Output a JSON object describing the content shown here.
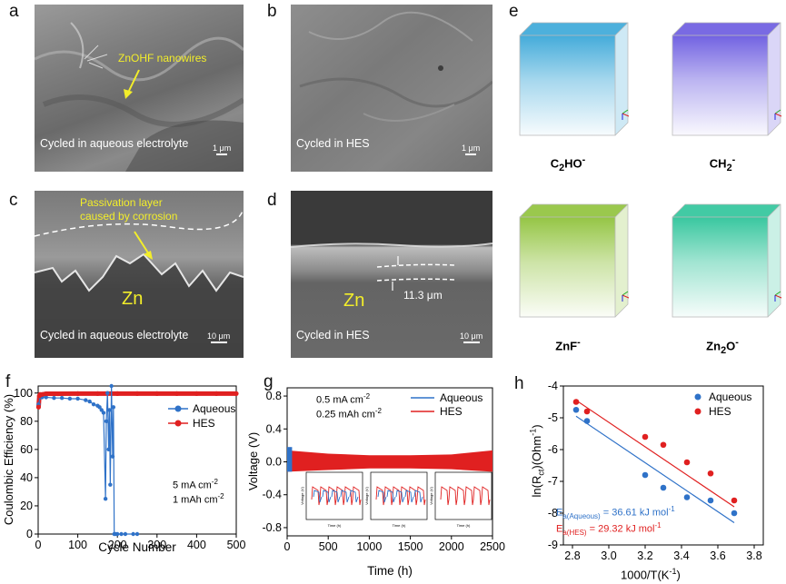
{
  "panel_labels": {
    "a": "a",
    "b": "b",
    "c": "c",
    "d": "d",
    "e": "e",
    "f": "f",
    "g": "g",
    "h": "h"
  },
  "sem": {
    "a": {
      "annotation": "ZnOHF nanowires",
      "caption": "Cycled in aqueous electrolyte",
      "scale": "1 μm"
    },
    "b": {
      "caption": "Cycled in HES",
      "scale": "1 μm"
    },
    "c": {
      "annotation_line1": "Passivation layer",
      "annotation_line2": "caused by corrosion",
      "zn": "Zn",
      "caption": "Cycled in aqueous electrolyte",
      "scale": "10 μm"
    },
    "d": {
      "zn": "Zn",
      "thickness": "11.3 μm",
      "caption": "Cycled in HES",
      "scale": "10 μm"
    }
  },
  "cubes": [
    {
      "formula_main": "C",
      "formula_sub": "2",
      "formula_rest": "HO",
      "formula_sup": "-",
      "color": "#3aa7d8"
    },
    {
      "formula_main": "CH",
      "formula_sub": "2",
      "formula_rest": "",
      "formula_sup": "-",
      "color": "#6a5ae0"
    },
    {
      "formula_main": "ZnF",
      "formula_sub": "",
      "formula_rest": "",
      "formula_sup": "-",
      "color": "#8fc23a"
    },
    {
      "formula_main": "Zn",
      "formula_sub": "2",
      "formula_rest": "O",
      "formula_sup": "-",
      "color": "#2ec49a"
    }
  ],
  "chart_data": [
    {
      "panel": "f",
      "type": "line",
      "xlabel": "Cycle Number",
      "ylabel": "Coulombic Efficiency (%)",
      "xlim": [
        0,
        500
      ],
      "ylim": [
        0,
        105
      ],
      "xticks": [
        0,
        100,
        200,
        300,
        400,
        500
      ],
      "yticks": [
        0,
        20,
        40,
        60,
        80,
        100
      ],
      "annotation_line1": "5 mA cm",
      "annotation_line1_sup": "-2",
      "annotation_line2": "1 mAh cm",
      "annotation_line2_sup": "-2",
      "legend_position": "top-right",
      "series": [
        {
          "name": "Aqueous",
          "color": "#2f72c8",
          "x": [
            1,
            5,
            10,
            20,
            40,
            60,
            80,
            100,
            120,
            130,
            140,
            150,
            155,
            160,
            165,
            170,
            172,
            175,
            178,
            180,
            182,
            185,
            188,
            190,
            192,
            195,
            200,
            210,
            220,
            240,
            250
          ],
          "y": [
            92,
            97,
            97,
            97,
            96.5,
            96.5,
            96,
            96,
            95,
            94,
            92,
            91,
            90,
            88,
            86,
            25,
            80,
            100,
            60,
            88,
            35,
            105,
            55,
            90,
            0,
            0,
            0,
            0,
            0,
            0,
            0
          ]
        },
        {
          "name": "HES",
          "color": "#e02020",
          "x": [
            1,
            3,
            5,
            10,
            20,
            50,
            100,
            150,
            200,
            250,
            300,
            350,
            400,
            450,
            500
          ],
          "y": [
            90,
            98,
            99,
            99,
            99.5,
            99.5,
            99.6,
            99.6,
            99.6,
            99.6,
            99.6,
            99.6,
            99.6,
            99.6,
            99.6
          ]
        }
      ]
    },
    {
      "panel": "g",
      "type": "line",
      "xlabel": "Time (h)",
      "ylabel": "Voltage (V)",
      "xlim": [
        0,
        2500
      ],
      "ylim": [
        -0.9,
        0.9
      ],
      "xticks": [
        0,
        500,
        1000,
        1500,
        2000,
        2500
      ],
      "yticks": [
        -0.8,
        -0.4,
        0.0,
        0.4,
        0.8
      ],
      "annotation_line1": "0.5 mA cm",
      "annotation_line1_sup": "-2",
      "annotation_line2": "0.25 mAh cm",
      "annotation_line2_sup": "-2",
      "legend_position": "top-right",
      "series": [
        {
          "name": "Aqueous",
          "color": "#2f72c8",
          "x": [
            0,
            60
          ],
          "y_max": [
            0.18,
            0.18
          ],
          "y_min": [
            -0.12,
            -0.12
          ]
        },
        {
          "name": "HES",
          "color": "#e02020",
          "x": [
            0,
            500,
            1000,
            1500,
            2000,
            2500
          ],
          "y_max": [
            0.14,
            0.1,
            0.08,
            0.08,
            0.09,
            0.14
          ],
          "y_min": [
            -0.12,
            -0.1,
            -0.08,
            -0.08,
            -0.09,
            -0.12
          ]
        }
      ],
      "inset_tick_labels": {
        "y": "Voltage (V)",
        "x": "Time (h)"
      }
    },
    {
      "panel": "h",
      "type": "scatter",
      "xlabel": "1000/T(K",
      "xlabel_sup": "-1",
      "xlabel_end": ")",
      "ylabel": "ln(R",
      "ylabel_sub": "ct",
      "ylabel_rest": ")(Ohm",
      "ylabel_sup": "-1",
      "ylabel_end": ")",
      "xlim": [
        2.75,
        3.85
      ],
      "ylim": [
        -9,
        -4
      ],
      "xticks": [
        2.8,
        3.0,
        3.2,
        3.4,
        3.6,
        3.8
      ],
      "yticks": [
        -9,
        -8,
        -7,
        -6,
        -5,
        -4
      ],
      "legend_position": "top-right",
      "series": [
        {
          "name": "Aqueous",
          "color": "#2f72c8",
          "x": [
            2.82,
            2.88,
            3.2,
            3.3,
            3.43,
            3.56,
            3.69
          ],
          "y": [
            -4.75,
            -5.1,
            -6.8,
            -7.2,
            -7.5,
            -7.6,
            -8.0
          ],
          "fit": {
            "x": [
              2.82,
              3.69
            ],
            "y": [
              -4.95,
              -8.3
            ]
          },
          "energy_label": "E",
          "energy_sub": "a(Aqueous)",
          "energy_value": " = 36.61 kJ mol",
          "energy_sup": "-1"
        },
        {
          "name": "HES",
          "color": "#e02020",
          "x": [
            2.82,
            2.88,
            3.2,
            3.3,
            3.43,
            3.56,
            3.69
          ],
          "y": [
            -4.5,
            -4.8,
            -5.6,
            -5.85,
            -6.4,
            -6.75,
            -7.6
          ],
          "fit": {
            "x": [
              2.82,
              3.69
            ],
            "y": [
              -4.45,
              -7.8
            ]
          },
          "energy_label": "E",
          "energy_sub": "a(HES)",
          "energy_value": " = 29.32 kJ mol",
          "energy_sup": "-1"
        }
      ]
    }
  ]
}
